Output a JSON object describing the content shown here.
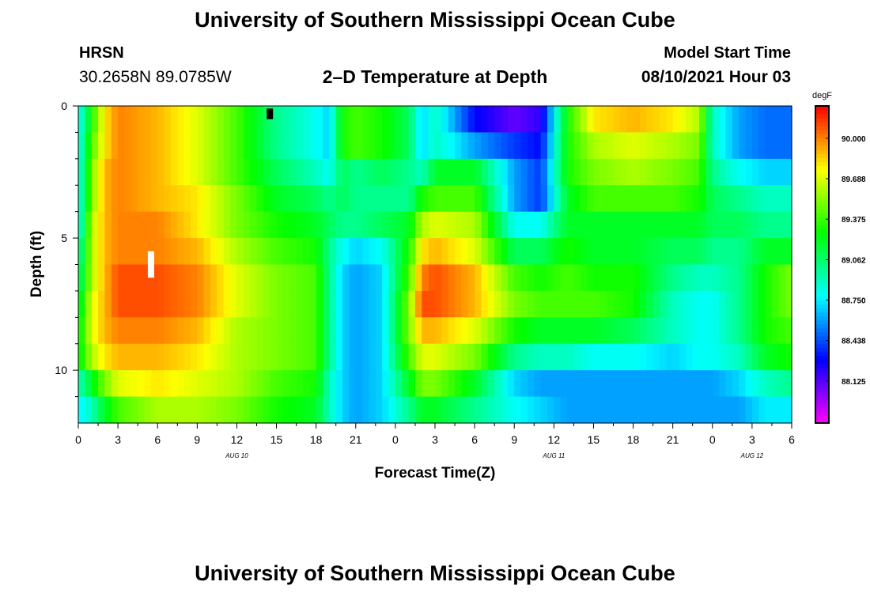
{
  "header": {
    "title": "University of Southern Mississippi Ocean Cube",
    "footer_title": "University of Southern Mississippi Ocean Cube",
    "station": "HRSN",
    "coords": "30.2658N  89.0785W",
    "subtitle": "2–D Temperature at Depth",
    "model_label": "Model Start Time",
    "model_time": "08/10/2021 Hour 03"
  },
  "chart_data": {
    "type": "heatmap",
    "title": "2–D Temperature at Depth",
    "xlabel": "Forecast Time(Z)",
    "ylabel": "Depth (ft)",
    "x_range_hours": [
      0,
      54
    ],
    "y_range_ft": [
      0,
      12
    ],
    "x_tick_labels": [
      "0",
      "3",
      "6",
      "9",
      "12",
      "15",
      "18",
      "21",
      "0",
      "3",
      "6",
      "9",
      "12",
      "15",
      "18",
      "21",
      "0",
      "3",
      "6"
    ],
    "y_tick_labels": [
      "0",
      "5",
      "10"
    ],
    "y_tick_values": [
      0,
      5,
      10
    ],
    "date_labels": [
      {
        "text": "AUG 10",
        "hour": 12
      },
      {
        "text": "AUG 11",
        "hour": 36
      },
      {
        "text": "AUG 12",
        "hour": 51
      }
    ],
    "colorbar": {
      "unit": "degF",
      "range": [
        87.8,
        90.25
      ],
      "ticks": [
        "90.000",
        "89.688",
        "89.375",
        "89.062",
        "88.750",
        "88.438",
        "88.125"
      ],
      "tick_values": [
        90.0,
        89.688,
        89.375,
        89.062,
        88.75,
        88.438,
        88.125
      ]
    },
    "markers": [
      {
        "color": "#ffffff",
        "hour": 5.5,
        "depth_ft": [
          5.5,
          6.5
        ]
      },
      {
        "color": "#000000",
        "hour": 14.5,
        "depth_ft": [
          0.1,
          0.5
        ]
      }
    ],
    "depth_levels_ft": [
      0.5,
      1.5,
      2.5,
      3.5,
      4.5,
      5.5,
      6.5,
      7.5,
      8.5,
      9.5,
      10.5,
      11.5
    ],
    "time_knots_hours": [
      0,
      1,
      2,
      3,
      6,
      9,
      12,
      15,
      18,
      19,
      20,
      21,
      23,
      25,
      26,
      27,
      30,
      33,
      35,
      37,
      39,
      42,
      45,
      47,
      48,
      50,
      52,
      54
    ],
    "values": [
      [
        88.75,
        89.3,
        89.8,
        90.0,
        89.9,
        89.7,
        89.4,
        89.0,
        88.8,
        88.7,
        89.3,
        89.4,
        89.3,
        89.1,
        88.7,
        88.9,
        88.3,
        88.1,
        88.2,
        89.3,
        89.8,
        89.9,
        89.8,
        89.6,
        88.9,
        88.6,
        88.5,
        88.5
      ],
      [
        88.75,
        89.4,
        89.8,
        90.0,
        89.9,
        89.7,
        89.4,
        89.0,
        88.8,
        88.7,
        89.3,
        89.4,
        89.3,
        89.1,
        88.7,
        88.9,
        88.6,
        88.4,
        88.3,
        89.3,
        89.6,
        89.7,
        89.6,
        89.5,
        88.9,
        88.6,
        88.5,
        88.5
      ],
      [
        88.75,
        89.5,
        89.9,
        90.0,
        89.9,
        89.7,
        89.4,
        89.1,
        88.9,
        88.8,
        89.1,
        89.0,
        89.1,
        89.0,
        88.9,
        89.2,
        89.2,
        88.6,
        88.4,
        89.3,
        89.5,
        89.6,
        89.5,
        89.4,
        89.0,
        88.8,
        88.7,
        88.7
      ],
      [
        88.75,
        89.5,
        89.9,
        90.0,
        89.9,
        89.8,
        89.5,
        89.2,
        89.1,
        89.0,
        89.1,
        89.0,
        89.0,
        89.0,
        89.3,
        89.4,
        89.4,
        88.6,
        88.4,
        89.2,
        89.4,
        89.4,
        89.4,
        89.3,
        89.1,
        89.0,
        88.9,
        88.9
      ],
      [
        88.75,
        89.6,
        89.9,
        90.0,
        90.0,
        89.8,
        89.5,
        89.3,
        89.2,
        89.1,
        89.0,
        89.0,
        89.1,
        89.2,
        89.6,
        89.7,
        89.6,
        88.8,
        88.8,
        89.2,
        89.2,
        89.2,
        89.2,
        89.2,
        89.1,
        89.1,
        89.0,
        89.0
      ],
      [
        88.9,
        89.6,
        89.9,
        90.0,
        90.0,
        89.9,
        89.6,
        89.4,
        89.3,
        89.0,
        88.8,
        88.7,
        88.8,
        89.3,
        89.8,
        89.9,
        89.7,
        89.1,
        89.1,
        89.3,
        89.2,
        89.2,
        89.1,
        89.1,
        89.0,
        89.0,
        89.2,
        89.2
      ],
      [
        89.0,
        89.6,
        89.9,
        90.1,
        90.1,
        90.0,
        89.7,
        89.5,
        89.4,
        89.0,
        88.7,
        88.6,
        88.7,
        89.4,
        90.0,
        90.1,
        89.9,
        89.4,
        89.3,
        89.4,
        89.3,
        89.3,
        89.0,
        88.9,
        88.9,
        89.0,
        89.3,
        89.5
      ],
      [
        89.1,
        89.7,
        89.9,
        90.1,
        90.1,
        90.0,
        89.7,
        89.5,
        89.4,
        89.0,
        88.7,
        88.6,
        88.7,
        89.5,
        90.1,
        90.1,
        89.9,
        89.5,
        89.4,
        89.4,
        89.4,
        89.3,
        88.9,
        88.8,
        88.8,
        89.0,
        89.3,
        89.5
      ],
      [
        89.2,
        89.7,
        89.9,
        90.0,
        90.0,
        89.9,
        89.6,
        89.5,
        89.4,
        89.0,
        88.7,
        88.6,
        88.7,
        89.5,
        89.9,
        89.9,
        89.7,
        89.3,
        89.2,
        89.2,
        89.2,
        89.1,
        88.9,
        88.8,
        88.8,
        89.0,
        89.3,
        89.4
      ],
      [
        89.2,
        89.6,
        89.8,
        89.9,
        89.9,
        89.8,
        89.6,
        89.5,
        89.4,
        89.0,
        88.7,
        88.6,
        88.7,
        89.4,
        89.7,
        89.7,
        89.5,
        89.0,
        88.9,
        88.9,
        88.8,
        88.8,
        88.7,
        88.8,
        88.8,
        88.9,
        89.2,
        89.3
      ],
      [
        88.9,
        89.2,
        89.5,
        89.7,
        89.8,
        89.7,
        89.6,
        89.4,
        89.3,
        88.9,
        88.7,
        88.6,
        88.7,
        89.2,
        89.5,
        89.5,
        89.2,
        88.7,
        88.6,
        88.6,
        88.6,
        88.6,
        88.6,
        88.6,
        88.6,
        88.7,
        88.9,
        89.0
      ],
      [
        88.75,
        88.9,
        89.2,
        89.4,
        89.6,
        89.6,
        89.5,
        89.3,
        89.2,
        88.9,
        88.7,
        88.6,
        88.7,
        89.0,
        89.2,
        89.2,
        89.0,
        88.8,
        88.7,
        88.6,
        88.6,
        88.6,
        88.6,
        88.6,
        88.6,
        88.6,
        88.75,
        88.75
      ]
    ]
  }
}
